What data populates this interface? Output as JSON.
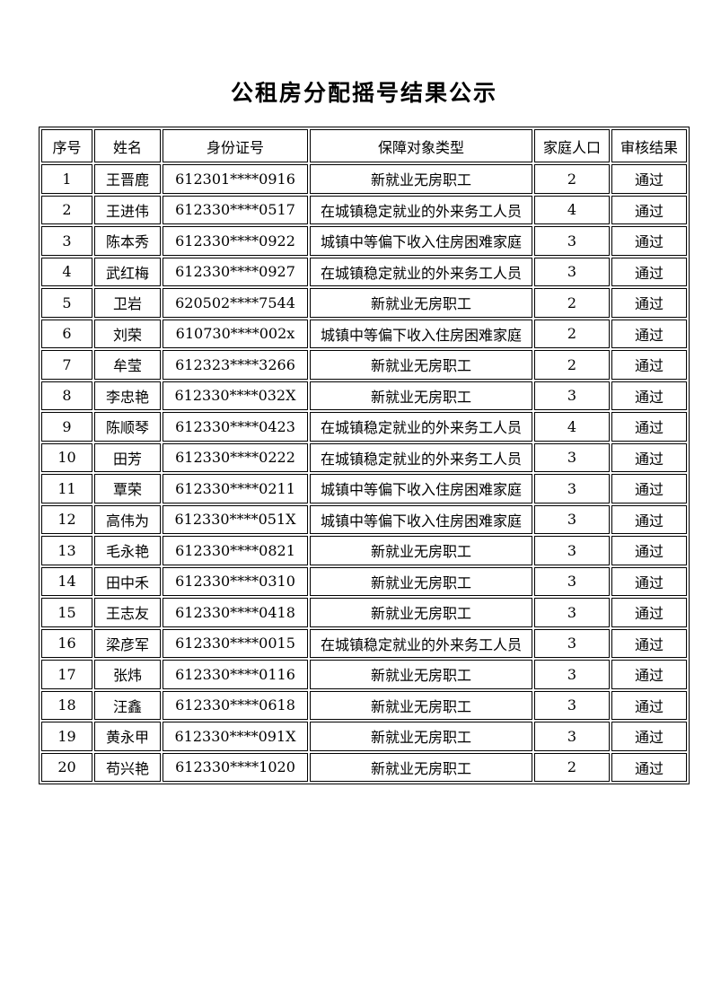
{
  "document": {
    "title": "公租房分配摇号结果公示",
    "table": {
      "headers": [
        "序号",
        "姓名",
        "身份证号",
        "保障对象类型",
        "家庭人口",
        "审核结果"
      ],
      "column_keys": [
        "serial-number",
        "name",
        "id-number",
        "beneficiary-type",
        "family-size",
        "review-result"
      ],
      "rows": [
        [
          "1",
          "王晋鹿",
          "612301****0916",
          "新就业无房职工",
          "2",
          "通过"
        ],
        [
          "2",
          "王进伟",
          "612330****0517",
          "在城镇稳定就业的外来务工人员",
          "4",
          "通过"
        ],
        [
          "3",
          "陈本秀",
          "612330****0922",
          "城镇中等偏下收入住房困难家庭",
          "3",
          "通过"
        ],
        [
          "4",
          "武红梅",
          "612330****0927",
          "在城镇稳定就业的外来务工人员",
          "3",
          "通过"
        ],
        [
          "5",
          "卫岩",
          "620502****7544",
          "新就业无房职工",
          "2",
          "通过"
        ],
        [
          "6",
          "刘荣",
          "610730****002x",
          "城镇中等偏下收入住房困难家庭",
          "2",
          "通过"
        ],
        [
          "7",
          "牟莹",
          "612323****3266",
          "新就业无房职工",
          "2",
          "通过"
        ],
        [
          "8",
          "李忠艳",
          "612330****032X",
          "新就业无房职工",
          "3",
          "通过"
        ],
        [
          "9",
          "陈顺琴",
          "612330****0423",
          "在城镇稳定就业的外来务工人员",
          "4",
          "通过"
        ],
        [
          "10",
          "田芳",
          "612330****0222",
          "在城镇稳定就业的外来务工人员",
          "3",
          "通过"
        ],
        [
          "11",
          "覃荣",
          "612330****0211",
          "城镇中等偏下收入住房困难家庭",
          "3",
          "通过"
        ],
        [
          "12",
          "高伟为",
          "612330****051X",
          "城镇中等偏下收入住房困难家庭",
          "3",
          "通过"
        ],
        [
          "13",
          "毛永艳",
          "612330****0821",
          "新就业无房职工",
          "3",
          "通过"
        ],
        [
          "14",
          "田中禾",
          "612330****0310",
          "新就业无房职工",
          "3",
          "通过"
        ],
        [
          "15",
          "王志友",
          "612330****0418",
          "新就业无房职工",
          "3",
          "通过"
        ],
        [
          "16",
          "梁彦军",
          "612330****0015",
          "在城镇稳定就业的外来务工人员",
          "3",
          "通过"
        ],
        [
          "17",
          "张炜",
          "612330****0116",
          "新就业无房职工",
          "3",
          "通过"
        ],
        [
          "18",
          "汪鑫",
          "612330****0618",
          "新就业无房职工",
          "3",
          "通过"
        ],
        [
          "19",
          "黄永甲",
          "612330****091X",
          "新就业无房职工",
          "3",
          "通过"
        ],
        [
          "20",
          "苟兴艳",
          "612330****1020",
          "新就业无房职工",
          "2",
          "通过"
        ]
      ]
    }
  },
  "colors": {
    "text": "#000000",
    "background": "#ffffff",
    "border": "#000000"
  }
}
